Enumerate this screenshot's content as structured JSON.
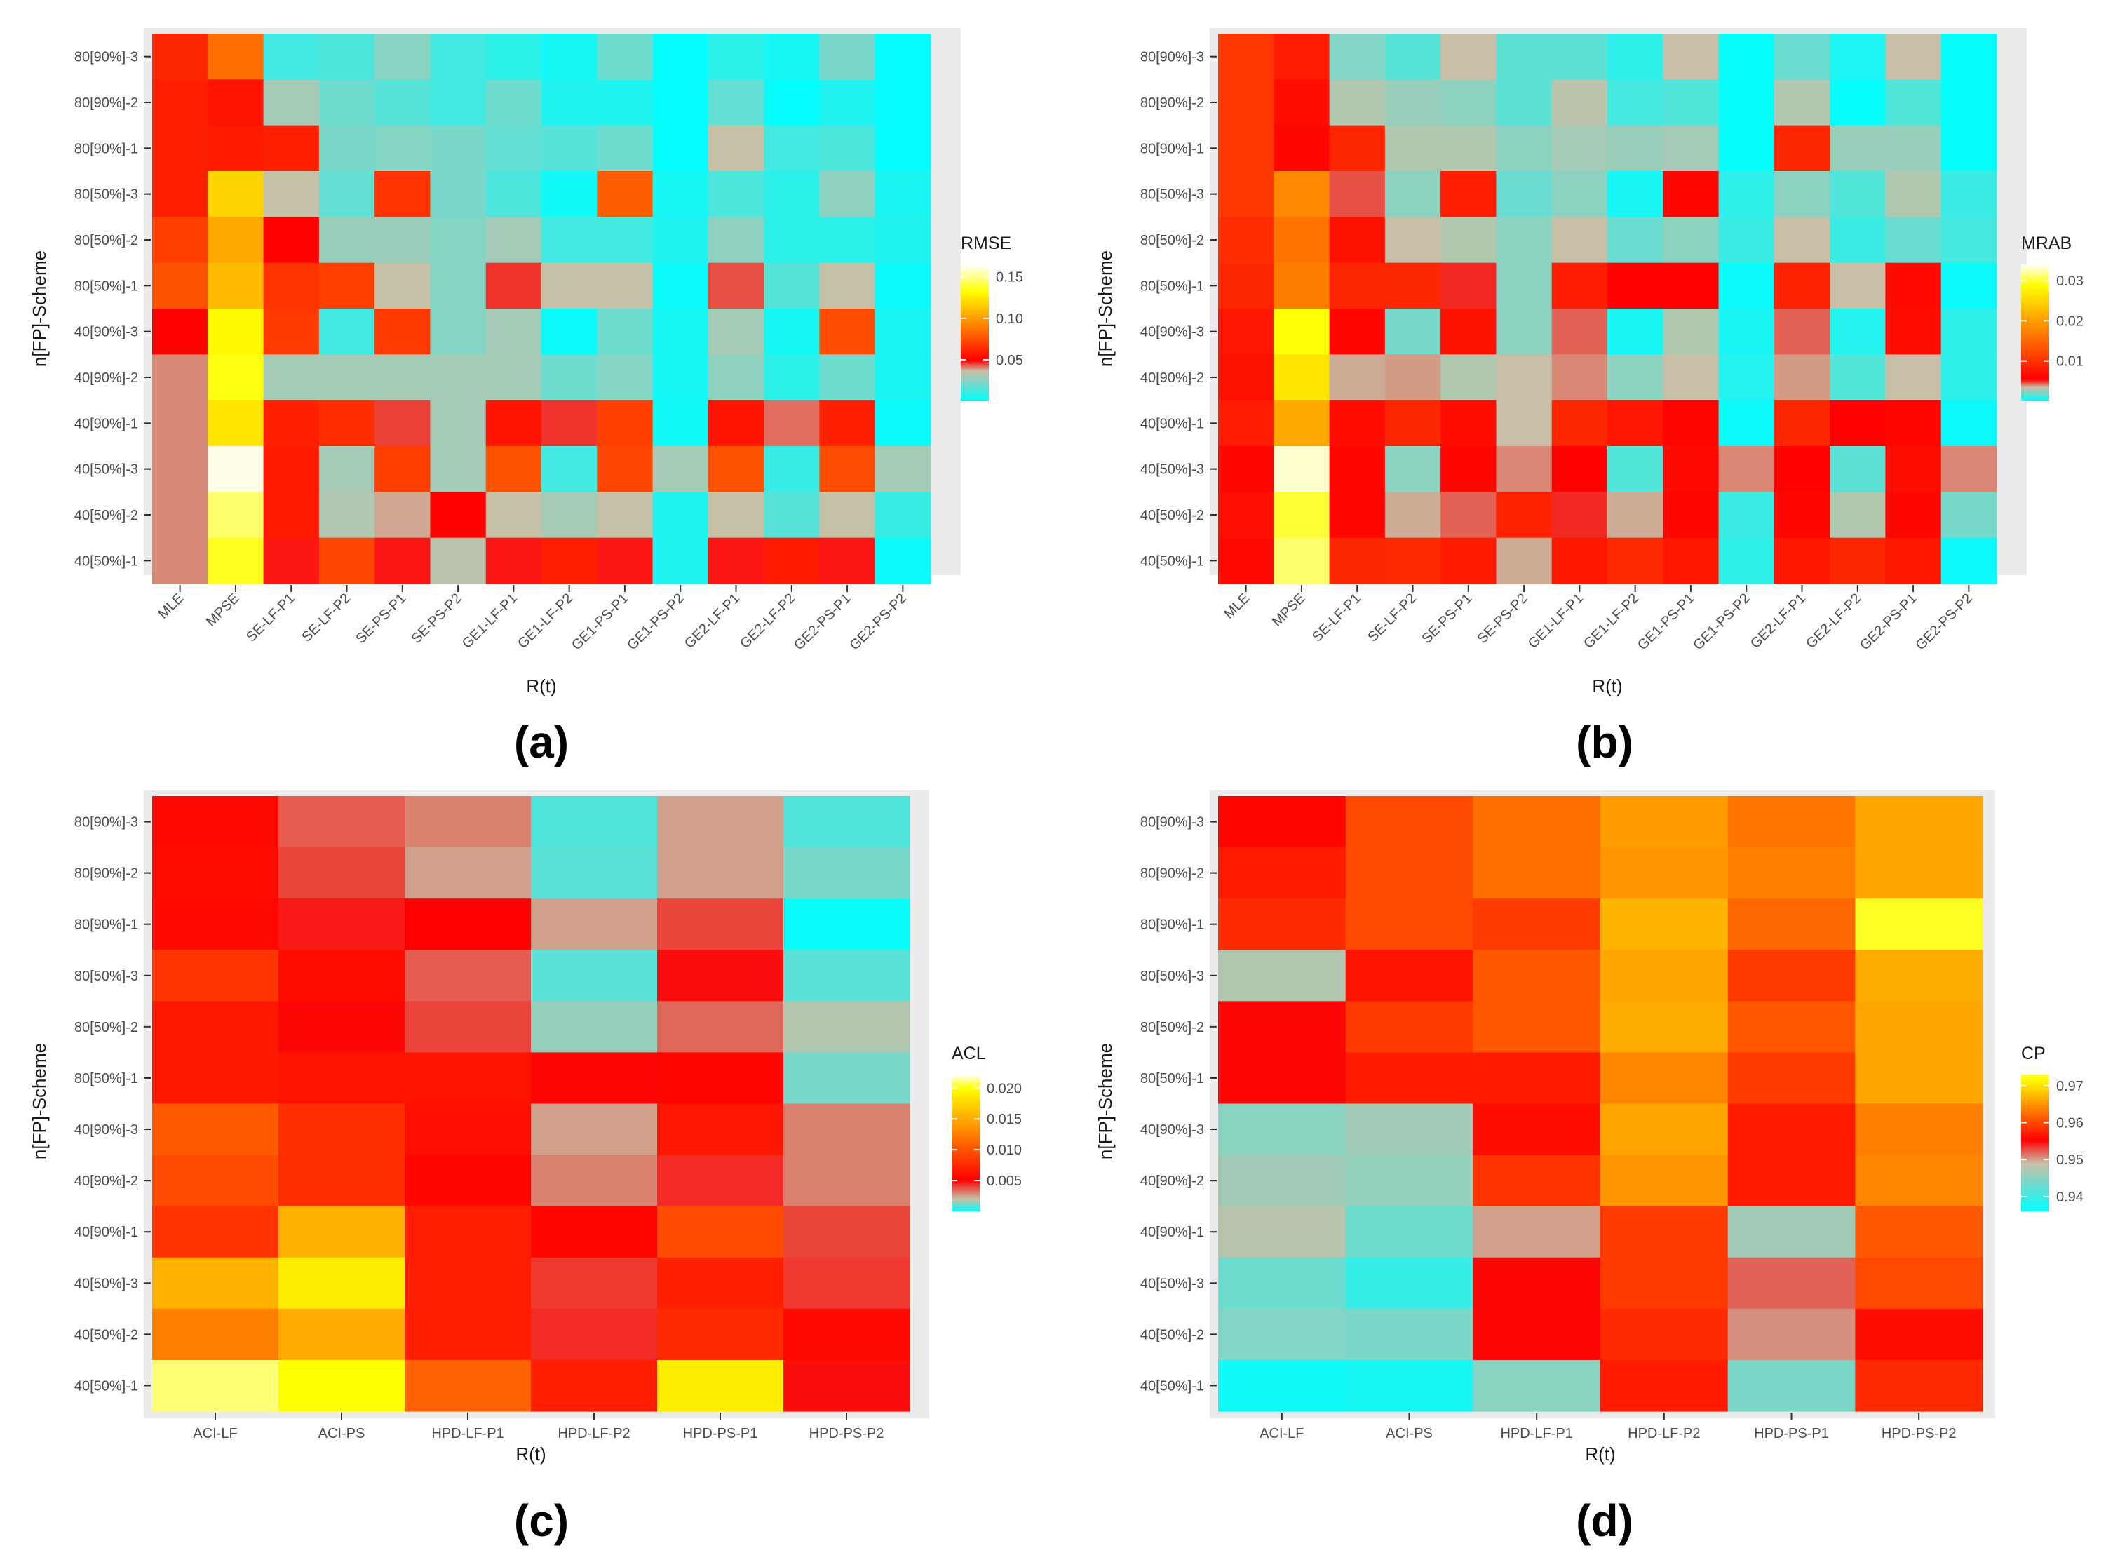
{
  "colors": {
    "panel_bg": "#ebebeb",
    "axis_text": "#4d4d4d",
    "title_text": "#1a1a1a",
    "scale_low": "#00ffff",
    "scale_mid": "#ff0000",
    "scale_high": "#ffff00",
    "scale_top": "#ffffff"
  },
  "chart_data": [
    {
      "type": "heatmap",
      "tag": "(a)",
      "xlabel": "R(t)",
      "ylabel": "n[FP]-Scheme",
      "legend_title": "RMSE",
      "legend_ticks": [
        "0.15",
        "0.10",
        "0.05"
      ],
      "legend_tick_values": [
        0.15,
        0.1,
        0.05
      ],
      "legend_range": [
        0.0,
        0.165
      ],
      "color_stops": [
        [
          0.0,
          "#00ffff"
        ],
        [
          0.22,
          "#c8bfa6"
        ],
        [
          0.3,
          "#ff0000"
        ],
        [
          0.8,
          "#ffff00"
        ],
        [
          1.0,
          "#ffffff"
        ]
      ],
      "x": [
        "MLE",
        "MPSE",
        "SE-LF-P1",
        "SE-LF-P2",
        "SE-PS-P1",
        "SE-PS-P2",
        "GE1-LF-P1",
        "GE1-LF-P2",
        "GE1-PS-P1",
        "GE1-PS-P2",
        "GE2-LF-P1",
        "GE2-LF-P2",
        "GE2-PS-P1",
        "GE2-PS-P2"
      ],
      "y": [
        "80[90%]-3",
        "80[90%]-2",
        "80[90%]-1",
        "80[50%]-3",
        "80[50%]-2",
        "80[50%]-1",
        "40[90%]-3",
        "40[90%]-2",
        "40[90%]-1",
        "40[50%]-3",
        "40[50%]-2",
        "40[50%]-1"
      ],
      "values": [
        [
          0.062,
          0.085,
          0.012,
          0.014,
          0.025,
          0.012,
          0.008,
          0.004,
          0.02,
          0.001,
          0.008,
          0.004,
          0.022,
          0.001
        ],
        [
          0.06,
          0.056,
          0.03,
          0.02,
          0.016,
          0.012,
          0.02,
          0.006,
          0.006,
          0.001,
          0.018,
          0.001,
          0.006,
          0.001
        ],
        [
          0.06,
          0.058,
          0.06,
          0.022,
          0.024,
          0.022,
          0.018,
          0.016,
          0.02,
          0.001,
          0.036,
          0.012,
          0.014,
          0.001
        ],
        [
          0.06,
          0.118,
          0.036,
          0.018,
          0.066,
          0.022,
          0.014,
          0.003,
          0.08,
          0.004,
          0.014,
          0.008,
          0.026,
          0.005
        ],
        [
          0.07,
          0.104,
          0.05,
          0.028,
          0.028,
          0.024,
          0.03,
          0.012,
          0.012,
          0.006,
          0.026,
          0.008,
          0.008,
          0.006
        ],
        [
          0.076,
          0.11,
          0.066,
          0.07,
          0.036,
          0.024,
          0.046,
          0.036,
          0.036,
          0.002,
          0.044,
          0.016,
          0.036,
          0.002
        ],
        [
          0.05,
          0.13,
          0.068,
          0.012,
          0.068,
          0.024,
          0.03,
          0.002,
          0.02,
          0.004,
          0.03,
          0.004,
          0.074,
          0.005
        ],
        [
          0.04,
          0.134,
          0.03,
          0.03,
          0.03,
          0.03,
          0.03,
          0.02,
          0.024,
          0.004,
          0.026,
          0.008,
          0.02,
          0.005
        ],
        [
          0.04,
          0.124,
          0.06,
          0.064,
          0.045,
          0.03,
          0.056,
          0.046,
          0.07,
          0.003,
          0.056,
          0.042,
          0.06,
          0.002
        ],
        [
          0.04,
          0.162,
          0.058,
          0.03,
          0.07,
          0.03,
          0.076,
          0.012,
          0.072,
          0.03,
          0.076,
          0.01,
          0.074,
          0.03
        ],
        [
          0.04,
          0.146,
          0.058,
          0.032,
          0.038,
          0.05,
          0.036,
          0.03,
          0.036,
          0.006,
          0.036,
          0.016,
          0.036,
          0.01
        ],
        [
          0.04,
          0.136,
          0.048,
          0.072,
          0.048,
          0.034,
          0.048,
          0.06,
          0.048,
          0.006,
          0.048,
          0.058,
          0.048,
          0.002
        ]
      ]
    },
    {
      "type": "heatmap",
      "tag": "(b)",
      "xlabel": "R(t)",
      "ylabel": "n[FP]-Scheme",
      "legend_title": "MRAB",
      "legend_ticks": [
        "0.03",
        "0.02",
        "0.01"
      ],
      "legend_tick_values": [
        0.03,
        0.02,
        0.01
      ],
      "legend_range": [
        0.0,
        0.034
      ],
      "color_stops": [
        [
          0.0,
          "#00ffff"
        ],
        [
          0.1,
          "#c8bfa6"
        ],
        [
          0.16,
          "#ff0000"
        ],
        [
          0.85,
          "#ffff00"
        ],
        [
          1.0,
          "#ffffff"
        ]
      ],
      "x": [
        "MLE",
        "MPSE",
        "SE-LF-P1",
        "SE-LF-P2",
        "SE-PS-P1",
        "SE-PS-P2",
        "GE1-LF-P1",
        "GE1-LF-P2",
        "GE1-PS-P1",
        "GE1-PS-P2",
        "GE2-LF-P1",
        "GE2-LF-P2",
        "GE2-PS-P1",
        "GE2-PS-P2"
      ],
      "y": [
        "80[90%]-3",
        "80[90%]-2",
        "80[90%]-1",
        "80[50%]-3",
        "80[50%]-2",
        "80[50%]-1",
        "40[90%]-3",
        "40[90%]-2",
        "40[90%]-1",
        "40[50%]-3",
        "40[50%]-2",
        "40[50%]-1"
      ],
      "values": [
        [
          0.0105,
          0.008,
          0.0022,
          0.0015,
          0.0034,
          0.0016,
          0.0016,
          0.0008,
          0.0034,
          0.0001,
          0.0018,
          0.0005,
          0.0034,
          0.0001
        ],
        [
          0.0105,
          0.0066,
          0.003,
          0.0026,
          0.0024,
          0.0016,
          0.0032,
          0.0012,
          0.0014,
          0.0001,
          0.003,
          0.0001,
          0.0014,
          0.0001
        ],
        [
          0.0105,
          0.006,
          0.009,
          0.003,
          0.003,
          0.0024,
          0.0028,
          0.0026,
          0.0028,
          0.0001,
          0.009,
          0.0026,
          0.0026,
          0.0001
        ],
        [
          0.0105,
          0.018,
          0.0046,
          0.0024,
          0.0082,
          0.0018,
          0.0024,
          0.0004,
          0.006,
          0.0008,
          0.0024,
          0.0014,
          0.003,
          0.001
        ],
        [
          0.0095,
          0.016,
          0.007,
          0.0034,
          0.003,
          0.0024,
          0.0034,
          0.0018,
          0.0024,
          0.001,
          0.0034,
          0.001,
          0.0018,
          0.0012
        ],
        [
          0.009,
          0.017,
          0.009,
          0.009,
          0.005,
          0.0024,
          0.008,
          0.0056,
          0.0056,
          0.0002,
          0.0086,
          0.0034,
          0.0064,
          0.0002
        ],
        [
          0.0075,
          0.029,
          0.006,
          0.002,
          0.007,
          0.0024,
          0.0044,
          0.0004,
          0.003,
          0.0004,
          0.0044,
          0.0006,
          0.0066,
          0.0008
        ],
        [
          0.007,
          0.0265,
          0.0036,
          0.0038,
          0.003,
          0.0034,
          0.004,
          0.0024,
          0.0034,
          0.0006,
          0.0038,
          0.0014,
          0.0034,
          0.0008
        ],
        [
          0.008,
          0.021,
          0.0066,
          0.009,
          0.0066,
          0.0034,
          0.009,
          0.0074,
          0.0058,
          0.0002,
          0.009,
          0.0056,
          0.0058,
          0.0002
        ],
        [
          0.006,
          0.033,
          0.006,
          0.0024,
          0.006,
          0.004,
          0.0056,
          0.0014,
          0.0064,
          0.004,
          0.0056,
          0.0016,
          0.0066,
          0.004
        ],
        [
          0.0068,
          0.03,
          0.006,
          0.0036,
          0.0044,
          0.0086,
          0.005,
          0.0036,
          0.006,
          0.001,
          0.006,
          0.003,
          0.006,
          0.002
        ],
        [
          0.0064,
          0.031,
          0.009,
          0.0092,
          0.0078,
          0.0036,
          0.0076,
          0.0092,
          0.0076,
          0.0008,
          0.0076,
          0.009,
          0.0076,
          0.0002
        ]
      ]
    },
    {
      "type": "heatmap",
      "tag": "(c)",
      "xlabel": "R(t)",
      "ylabel": "n[FP]-Scheme",
      "legend_title": "ACL",
      "legend_ticks": [
        "0.020",
        "0.015",
        "0.010",
        "0.005"
      ],
      "legend_tick_values": [
        0.02,
        0.015,
        0.01,
        0.005
      ],
      "legend_range": [
        0.0,
        0.0222
      ],
      "color_stops": [
        [
          0.0,
          "#00ffff"
        ],
        [
          0.09,
          "#c8bfa6"
        ],
        [
          0.23,
          "#ff0000"
        ],
        [
          0.9,
          "#ffff00"
        ],
        [
          1.0,
          "#ffffff"
        ]
      ],
      "x": [
        "ACI-LF",
        "ACI-PS",
        "HPD-LF-P1",
        "HPD-LF-P2",
        "HPD-PS-P1",
        "HPD-PS-P2"
      ],
      "y": [
        "80[90%]-3",
        "80[90%]-2",
        "80[90%]-1",
        "80[50%]-3",
        "80[50%]-2",
        "80[50%]-1",
        "40[90%]-3",
        "40[90%]-2",
        "40[90%]-1",
        "40[50%]-3",
        "40[50%]-2",
        "40[50%]-1"
      ],
      "values": [
        [
          0.0057,
          0.0036,
          0.003,
          0.0008,
          0.0025,
          0.0008
        ],
        [
          0.0058,
          0.004,
          0.0025,
          0.0009,
          0.0025,
          0.0012
        ],
        [
          0.0056,
          0.0047,
          0.0051,
          0.0025,
          0.004,
          0.0001
        ],
        [
          0.0082,
          0.0058,
          0.0036,
          0.0009,
          0.0049,
          0.0009
        ],
        [
          0.0065,
          0.005,
          0.004,
          0.0015,
          0.0034,
          0.0018
        ],
        [
          0.0065,
          0.0062,
          0.0062,
          0.005,
          0.0054,
          0.0012
        ],
        [
          0.0103,
          0.0078,
          0.006,
          0.0025,
          0.0064,
          0.003
        ],
        [
          0.0095,
          0.0078,
          0.0055,
          0.003,
          0.0044,
          0.003
        ],
        [
          0.008,
          0.0155,
          0.0068,
          0.0055,
          0.0095,
          0.004
        ],
        [
          0.0155,
          0.019,
          0.0068,
          0.0042,
          0.007,
          0.0042
        ],
        [
          0.0125,
          0.015,
          0.0068,
          0.0044,
          0.0075,
          0.0057
        ],
        [
          0.021,
          0.02,
          0.0108,
          0.0068,
          0.019,
          0.0049
        ]
      ]
    },
    {
      "type": "heatmap",
      "tag": "(d)",
      "xlabel": "R(t)",
      "ylabel": "n[FP]-Scheme",
      "legend_title": "CP",
      "legend_ticks": [
        "0.97",
        "0.96",
        "0.95",
        "0.94"
      ],
      "legend_tick_values": [
        0.97,
        0.96,
        0.95,
        0.94
      ],
      "legend_range": [
        0.936,
        0.973
      ],
      "color_stops": [
        [
          0.0,
          "#00ffff"
        ],
        [
          0.35,
          "#c8bfa6"
        ],
        [
          0.52,
          "#ff0000"
        ],
        [
          0.97,
          "#ffff00"
        ],
        [
          1.0,
          "#ffff40"
        ]
      ],
      "x": [
        "ACI-LF",
        "ACI-PS",
        "HPD-LF-P1",
        "HPD-LF-P2",
        "HPD-PS-P1",
        "HPD-PS-P2"
      ],
      "y": [
        "80[90%]-3",
        "80[90%]-2",
        "80[90%]-1",
        "80[50%]-3",
        "80[50%]-2",
        "80[50%]-1",
        "40[90%]-3",
        "40[90%]-2",
        "40[90%]-1",
        "40[50%]-3",
        "40[50%]-2",
        "40[50%]-1"
      ],
      "values": [
        [
          0.9555,
          0.96,
          0.9625,
          0.9655,
          0.963,
          0.966
        ],
        [
          0.957,
          0.96,
          0.9625,
          0.965,
          0.9635,
          0.966
        ],
        [
          0.958,
          0.96,
          0.959,
          0.967,
          0.962,
          0.9725
        ],
        [
          0.9475,
          0.9565,
          0.961,
          0.966,
          0.959,
          0.9665
        ],
        [
          0.955,
          0.959,
          0.961,
          0.9665,
          0.961,
          0.966
        ],
        [
          0.955,
          0.957,
          0.957,
          0.964,
          0.959,
          0.966
        ],
        [
          0.945,
          0.9465,
          0.956,
          0.966,
          0.957,
          0.9635
        ],
        [
          0.9465,
          0.9455,
          0.9585,
          0.965,
          0.957,
          0.964
        ],
        [
          0.948,
          0.943,
          0.95,
          0.959,
          0.9465,
          0.961
        ],
        [
          0.943,
          0.9395,
          0.955,
          0.959,
          0.952,
          0.96
        ],
        [
          0.9445,
          0.944,
          0.955,
          0.958,
          0.9505,
          0.956
        ],
        [
          0.937,
          0.9375,
          0.945,
          0.957,
          0.944,
          0.958
        ]
      ]
    }
  ]
}
